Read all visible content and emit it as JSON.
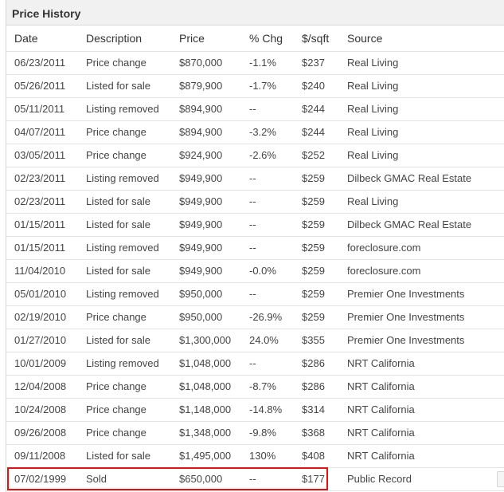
{
  "panel": {
    "title": "Price History"
  },
  "columns": {
    "date": "Date",
    "description": "Description",
    "price": "Price",
    "change": "% Chg",
    "per_sqft": "$/sqft",
    "source": "Source"
  },
  "rows": [
    {
      "date": "06/23/2011",
      "description": "Price change",
      "price": "$870,000",
      "change": "-1.1%",
      "change_tone": "neg",
      "per_sqft": "$237",
      "source": "Real Living"
    },
    {
      "date": "05/26/2011",
      "description": "Listed for sale",
      "price": "$879,900",
      "change": "-1.7%",
      "change_tone": "neg",
      "per_sqft": "$240",
      "source": "Real Living"
    },
    {
      "date": "05/11/2011",
      "description": "Listing removed",
      "price": "$894,900",
      "change": "--",
      "change_tone": "neu",
      "per_sqft": "$244",
      "source": "Real Living"
    },
    {
      "date": "04/07/2011",
      "description": "Price change",
      "price": "$894,900",
      "change": "-3.2%",
      "change_tone": "neg",
      "per_sqft": "$244",
      "source": "Real Living"
    },
    {
      "date": "03/05/2011",
      "description": "Price change",
      "price": "$924,900",
      "change": "-2.6%",
      "change_tone": "neg",
      "per_sqft": "$252",
      "source": "Real Living"
    },
    {
      "date": "02/23/2011",
      "description": "Listing removed",
      "price": "$949,900",
      "change": "--",
      "change_tone": "neu",
      "per_sqft": "$259",
      "source": "Dilbeck GMAC Real Estate"
    },
    {
      "date": "02/23/2011",
      "description": "Listed for sale",
      "price": "$949,900",
      "change": "--",
      "change_tone": "neu",
      "per_sqft": "$259",
      "source": "Real Living"
    },
    {
      "date": "01/15/2011",
      "description": "Listed for sale",
      "price": "$949,900",
      "change": "--",
      "change_tone": "neu",
      "per_sqft": "$259",
      "source": "Dilbeck GMAC Real Estate"
    },
    {
      "date": "01/15/2011",
      "description": "Listing removed",
      "price": "$949,900",
      "change": "--",
      "change_tone": "neu",
      "per_sqft": "$259",
      "source": "foreclosure.com"
    },
    {
      "date": "11/04/2010",
      "description": "Listed for sale",
      "price": "$949,900",
      "change": "-0.0%",
      "change_tone": "neg",
      "per_sqft": "$259",
      "source": "foreclosure.com"
    },
    {
      "date": "05/01/2010",
      "description": "Listing removed",
      "price": "$950,000",
      "change": "--",
      "change_tone": "neu",
      "per_sqft": "$259",
      "source": "Premier One Investments"
    },
    {
      "date": "02/19/2010",
      "description": "Price change",
      "price": "$950,000",
      "change": "-26.9%",
      "change_tone": "neg",
      "per_sqft": "$259",
      "source": "Premier One Investments"
    },
    {
      "date": "01/27/2010",
      "description": "Listed for sale",
      "price": "$1,300,000",
      "change": "24.0%",
      "change_tone": "pos",
      "per_sqft": "$355",
      "source": "Premier One Investments"
    },
    {
      "date": "10/01/2009",
      "description": "Listing removed",
      "price": "$1,048,000",
      "change": "--",
      "change_tone": "neu",
      "per_sqft": "$286",
      "source": "NRT California"
    },
    {
      "date": "12/04/2008",
      "description": "Price change",
      "price": "$1,048,000",
      "change": "-8.7%",
      "change_tone": "neg",
      "per_sqft": "$286",
      "source": "NRT California"
    },
    {
      "date": "10/24/2008",
      "description": "Price change",
      "price": "$1,148,000",
      "change": "-14.8%",
      "change_tone": "neg",
      "per_sqft": "$314",
      "source": "NRT California"
    },
    {
      "date": "09/26/2008",
      "description": "Price change",
      "price": "$1,348,000",
      "change": "-9.8%",
      "change_tone": "neg",
      "per_sqft": "$368",
      "source": "NRT California"
    },
    {
      "date": "09/11/2008",
      "description": "Listed for sale",
      "price": "$1,495,000",
      "change": "130%",
      "change_tone": "pos",
      "per_sqft": "$408",
      "source": "NRT California"
    },
    {
      "date": "07/02/1999",
      "description": "Sold",
      "price": "$650,000",
      "change": "--",
      "change_tone": "neu",
      "per_sqft": "$177",
      "source": "Public Record"
    }
  ],
  "colors": {
    "negative": "#cc0000",
    "positive": "#109410",
    "highlight": "#e01212"
  }
}
